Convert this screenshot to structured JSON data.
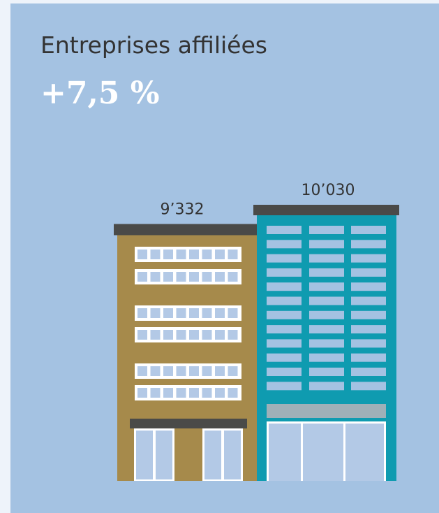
{
  "chart_data": {
    "type": "bar",
    "title": "Entreprises affiliées",
    "subtitle": "+7,5 %",
    "categories": [
      null,
      null
    ],
    "values": [
      9332,
      10030
    ],
    "value_labels": [
      "9’332",
      "10’030"
    ],
    "colors": [
      "#a68a4b",
      "#0f9bb0"
    ]
  }
}
